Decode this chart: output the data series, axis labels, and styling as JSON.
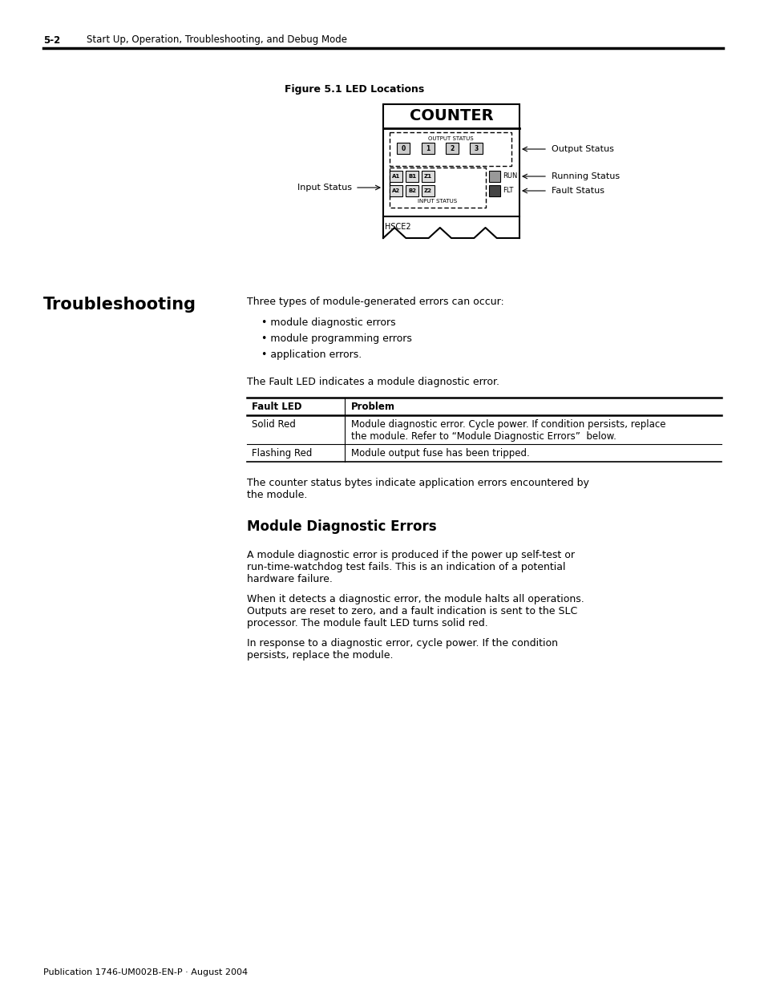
{
  "page_header_num": "5-2",
  "page_header_text": "Start Up, Operation, Troubleshooting, and Debug Mode",
  "figure_title": "Figure 5.1 LED Locations",
  "counter_label": "COUNTER",
  "output_status_label": "OUTPUT STATUS",
  "input_status_label": "INPUT STATUS",
  "hsce2_label": "HSCE2",
  "run_label": "RUN",
  "flt_label": "FLT",
  "output_status_arrow": "Output Status",
  "running_status_arrow": "Running Status",
  "fault_status_arrow": "Fault Status",
  "input_status_arrow": "Input Status",
  "section_title": "Troubleshooting",
  "intro_text": "Three types of module-generated errors can occur:",
  "bullets": [
    "module diagnostic errors",
    "module programming errors",
    "application errors."
  ],
  "fault_led_intro": "The Fault LED indicates a module diagnostic error.",
  "table_header_col1": "Fault LED",
  "table_header_col2": "Problem",
  "table_row1_col1": "Solid Red",
  "table_row1_col2": "Module diagnostic error. Cycle power. If condition persists, replace\nthe module. Refer to “Module Diagnostic Errors”  below.",
  "table_row2_col1": "Flashing Red",
  "table_row2_col2": "Module output fuse has been tripped.",
  "counter_status_text": "The counter status bytes indicate application errors encountered by\nthe module.",
  "subsection_title": "Module Diagnostic Errors",
  "para1": "A module diagnostic error is produced if the power up self-test or\nrun-time-watchdog test fails. This is an indication of a potential\nhardware failure.",
  "para2": "When it detects a diagnostic error, the module halts all operations.\nOutputs are reset to zero, and a fault indication is sent to the SLC\nprocessor. The module fault LED turns solid red.",
  "para3": "In response to a diagnostic error, cycle power. If the condition\npersists, replace the module.",
  "footer_text": "Publication 1746-UM002B-EN-P · August 2004",
  "led_labels_row0": [
    "0",
    "1",
    "2",
    "3"
  ],
  "led_labels_row1": [
    "A1",
    "B1",
    "Z1"
  ],
  "led_labels_row2": [
    "A2",
    "B2",
    "Z2"
  ],
  "bg_color": "#ffffff"
}
